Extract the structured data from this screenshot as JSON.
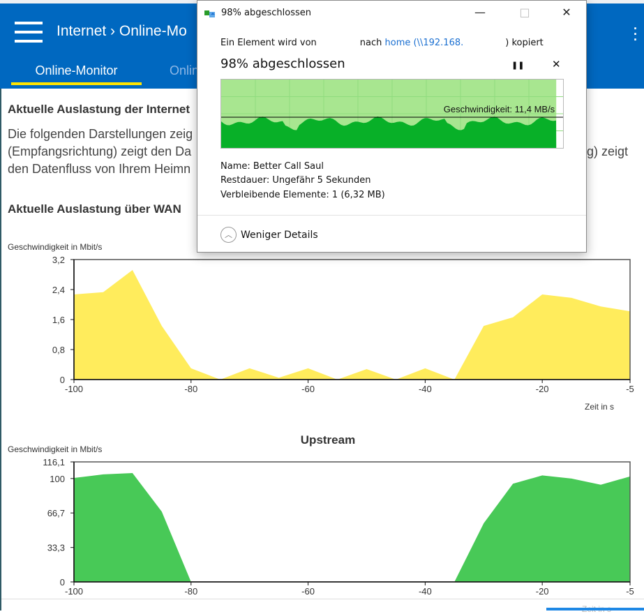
{
  "header": {
    "breadcrumb": "Internet › Online-Mo",
    "tabs": [
      {
        "label": "Online-Monitor",
        "active": true
      },
      {
        "label": "Onlin",
        "active": false
      }
    ],
    "brand_color": "#0068c0",
    "accent_color": "#ffe500"
  },
  "content": {
    "heading1": "Aktuelle Auslastung der Internet",
    "para_lines": [
      "Die folgenden Darstellungen zeig",
      "(Empfangsrichtung) zeigt den Da",
      "den Datenfluss von Ihrem Heimn"
    ],
    "para_right": "g) zeigt",
    "heading2": "Aktuelle Auslastung über WAN"
  },
  "chart_data": [
    {
      "type": "area",
      "title": "",
      "ylabel": "Geschwindigkeit in Mbit/s",
      "xlabel": "Zeit in s",
      "color": "#ffec5c",
      "ylim": [
        0,
        3.2
      ],
      "yticks": [
        "0",
        "0,8",
        "1,6",
        "2,4",
        "3,2"
      ],
      "ytick_values": [
        0,
        0.8,
        1.6,
        2.4,
        3.2
      ],
      "xlim": [
        -100,
        -5
      ],
      "xticks": [
        "-100",
        "-80",
        "-60",
        "-40",
        "-20",
        "-5"
      ],
      "xtick_values": [
        -100,
        -80,
        -60,
        -40,
        -20,
        -5
      ],
      "x": [
        -100,
        -95,
        -90,
        -85,
        -80,
        -75,
        -70,
        -65,
        -60,
        -55,
        -50,
        -45,
        -40,
        -35,
        -30,
        -25,
        -20,
        -15,
        -10,
        -5
      ],
      "values": [
        2.27,
        2.33,
        2.92,
        1.43,
        0.3,
        0,
        0.3,
        0.05,
        0.3,
        0,
        0.28,
        0,
        0.3,
        0,
        1.43,
        1.66,
        2.27,
        2.18,
        1.95,
        1.82
      ]
    },
    {
      "type": "area",
      "title": "Upstream",
      "ylabel": "Geschwindigkeit in Mbit/s",
      "xlabel": "Zeit in s",
      "color": "#48c957",
      "ylim": [
        0,
        116.1
      ],
      "yticks": [
        "0",
        "33,3",
        "66,7",
        "100",
        "116,1"
      ],
      "ytick_values": [
        0,
        33.3,
        66.7,
        100,
        116.1
      ],
      "xlim": [
        -100,
        -5
      ],
      "xticks": [
        "-100",
        "-80",
        "-60",
        "-40",
        "-20",
        "-5"
      ],
      "xtick_values": [
        -100,
        -80,
        -60,
        -40,
        -20,
        -5
      ],
      "x": [
        -100,
        -95,
        -90,
        -85,
        -80,
        -75,
        -70,
        -65,
        -60,
        -55,
        -50,
        -45,
        -40,
        -35,
        -30,
        -25,
        -20,
        -15,
        -10,
        -5
      ],
      "values": [
        100.6,
        104,
        105.3,
        68,
        0,
        0,
        0,
        0,
        0,
        0,
        0,
        0,
        0,
        0,
        56.7,
        95,
        103,
        100,
        94,
        102
      ]
    }
  ],
  "dialog": {
    "title": "98% abgeschlossen",
    "copy_prefix": "Ein Element wird von",
    "copy_mid": "nach",
    "copy_link": "home (\\\\192.168.",
    "copy_suffix": ") kopiert",
    "heading": "98% abgeschlossen",
    "progress_percent": 98,
    "speed": "Geschwindigkeit: 11,4 MB/s",
    "name_label": "Name:",
    "name_value": "Better Call Saul",
    "remaining_label": "Restdauer:",
    "remaining_value": "Ungefähr 5 Sekunden",
    "items_label": "Verbleibende Elemente:",
    "items_value": "1 (6,32 MB)",
    "less_details": "Weniger Details",
    "pause_icon": "❚❚",
    "close_icon": "✕",
    "min_icon": "—",
    "max_icon": "□",
    "winclose_icon": "✕"
  },
  "footer": {
    "xlabel_faded": "Zeit in s"
  }
}
